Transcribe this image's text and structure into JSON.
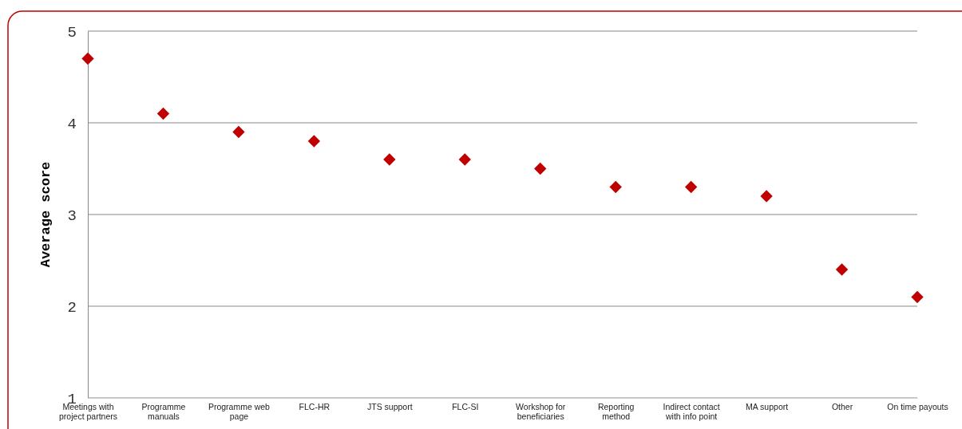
{
  "chart_data": {
    "type": "scatter",
    "ylabel": "Average score",
    "categories": [
      "Meetings with project partners",
      "Programme manuals",
      "Programme web page",
      "FLC-HR",
      "JTS support",
      "FLC-SI",
      "Workshop for beneficiaries",
      "Reporting method",
      "Indirect contact with info point",
      "MA support",
      "Other",
      "On time payouts"
    ],
    "series": [
      {
        "color": "#c00000",
        "values": [
          4.7,
          4.1,
          3.9,
          3.8,
          3.6,
          3.6,
          3.5,
          3.3,
          3.3,
          3.2,
          2.4,
          2.1
        ]
      }
    ],
    "ylim": [
      1,
      5
    ],
    "yticks": [
      1,
      2,
      3,
      4,
      5
    ],
    "grid": "y",
    "marker": "diamond"
  }
}
